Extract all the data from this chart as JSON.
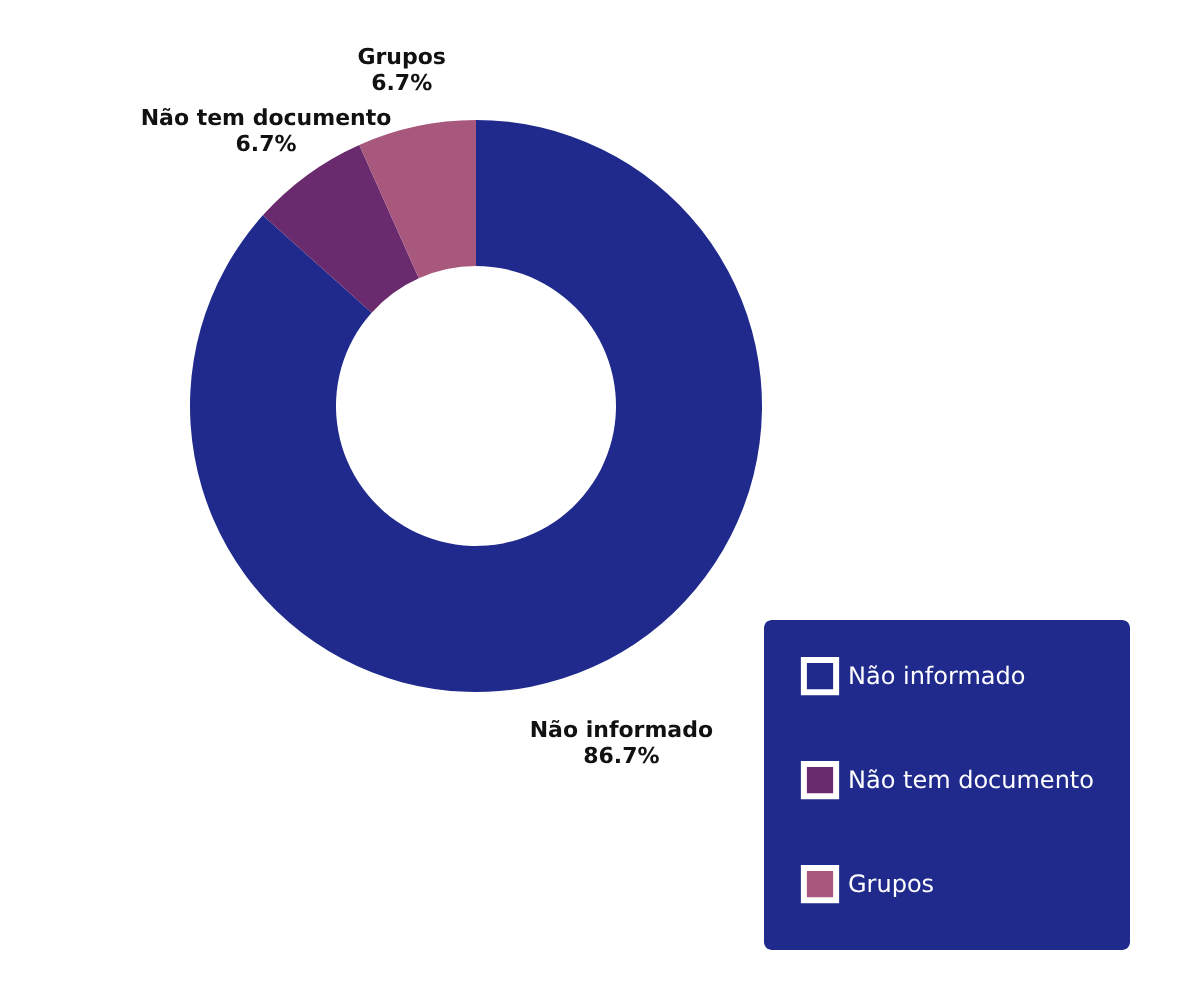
{
  "chart_data": {
    "type": "donut",
    "categories": [
      "Não informado",
      "Não tem documento",
      "Grupos"
    ],
    "values": [
      86.7,
      6.7,
      6.7
    ],
    "colors": [
      "#1f2a8c",
      "#6a2a6e",
      "#a8587c"
    ],
    "value_labels": [
      "86.7%",
      "6.7%",
      "6.7%"
    ],
    "legend": "bottom right"
  }
}
